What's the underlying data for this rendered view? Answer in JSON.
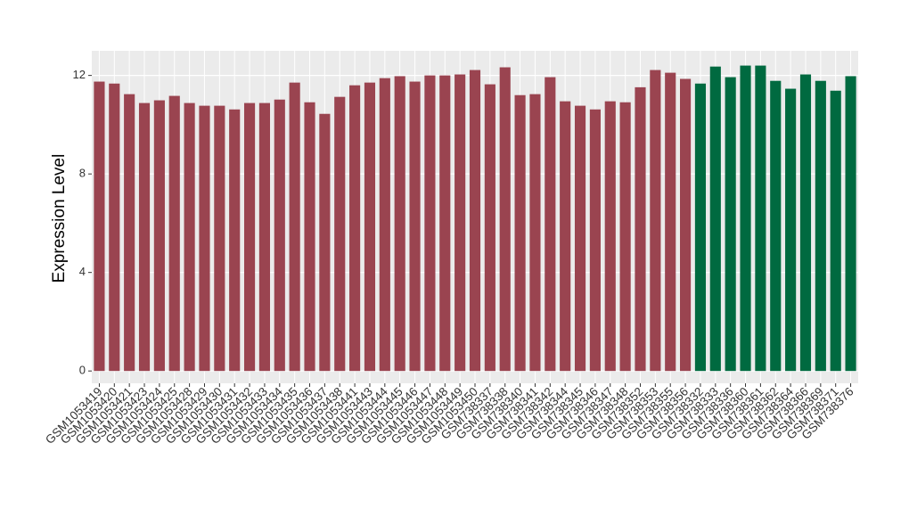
{
  "chart_data": {
    "type": "bar",
    "y_label": "Expression Level",
    "categories": [
      "GSM1053419",
      "GSM1053420",
      "GSM1053421",
      "GSM1053423",
      "GSM1053424",
      "GSM1053425",
      "GSM1053428",
      "GSM1053429",
      "GSM1053430",
      "GSM1053431",
      "GSM1053432",
      "GSM1053433",
      "GSM1053434",
      "GSM1053435",
      "GSM1053436",
      "GSM1053437",
      "GSM1053438",
      "GSM1053441",
      "GSM1053443",
      "GSM1053444",
      "GSM1053445",
      "GSM1053446",
      "GSM1053447",
      "GSM1053448",
      "GSM1053449",
      "GSM1053450",
      "GSM738337",
      "GSM738338",
      "GSM738340",
      "GSM738341",
      "GSM738342",
      "GSM738344",
      "GSM738345",
      "GSM738346",
      "GSM738347",
      "GSM738348",
      "GSM738352",
      "GSM738353",
      "GSM738355",
      "GSM738356",
      "GSM738332",
      "GSM738333",
      "GSM738336",
      "GSM738360",
      "GSM738361",
      "GSM738362",
      "GSM738364",
      "GSM738366",
      "GSM738369",
      "GSM738371",
      "GSM738376"
    ],
    "values": [
      11.75,
      11.67,
      11.24,
      10.88,
      10.99,
      11.17,
      10.88,
      10.77,
      10.77,
      10.62,
      10.88,
      10.88,
      11.02,
      11.71,
      10.91,
      10.44,
      11.13,
      11.6,
      11.71,
      11.89,
      11.97,
      11.75,
      12.0,
      12.0,
      12.04,
      12.22,
      11.64,
      12.33,
      11.2,
      11.24,
      11.93,
      10.95,
      10.77,
      10.62,
      10.95,
      10.91,
      11.52,
      12.22,
      12.11,
      11.86,
      11.67,
      12.36,
      11.93,
      12.4,
      12.4,
      11.78,
      11.46,
      12.04,
      11.78,
      11.38,
      11.97
    ],
    "colors": [
      "#9a4450",
      "#9a4450",
      "#9a4450",
      "#9a4450",
      "#9a4450",
      "#9a4450",
      "#9a4450",
      "#9a4450",
      "#9a4450",
      "#9a4450",
      "#9a4450",
      "#9a4450",
      "#9a4450",
      "#9a4450",
      "#9a4450",
      "#9a4450",
      "#9a4450",
      "#9a4450",
      "#9a4450",
      "#9a4450",
      "#9a4450",
      "#9a4450",
      "#9a4450",
      "#9a4450",
      "#9a4450",
      "#9a4450",
      "#9a4450",
      "#9a4450",
      "#9a4450",
      "#9a4450",
      "#9a4450",
      "#9a4450",
      "#9a4450",
      "#9a4450",
      "#9a4450",
      "#9a4450",
      "#9a4450",
      "#9a4450",
      "#9a4450",
      "#9a4450",
      "#006a40",
      "#006a40",
      "#006a40",
      "#006a40",
      "#006a40",
      "#006a40",
      "#006a40",
      "#006a40",
      "#006a40",
      "#006a40",
      "#006a40"
    ],
    "ylim": [
      -0.5,
      13.0
    ],
    "yticks": [
      0,
      4,
      8,
      12
    ],
    "grid": true
  }
}
